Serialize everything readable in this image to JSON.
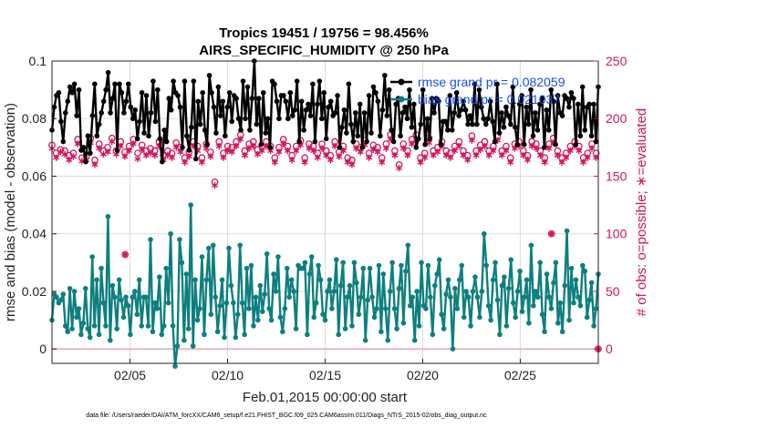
{
  "colors": {
    "rmse": "#000000",
    "bias": "#0e7f7f",
    "obs": "#d4145a",
    "legend_text": "#1a4ff0",
    "zero_line": "#e6b8c4"
  },
  "chart_data": {
    "type": "line",
    "title": "Tropics 19451 / 19756 = 98.456%",
    "subtitle": "AIRS_SPECIFIC_HUMIDITY @ 250 hPa",
    "xlabel": "Feb.01,2015 00:00:00 start",
    "ylabel": "rmse and bias (model - observation)",
    "y2label": "# of obs: o=possible; ∗=evaluated",
    "xlim": [
      1,
      29
    ],
    "ylim": [
      -0.005,
      0.1
    ],
    "y2lim": [
      -12.5,
      250
    ],
    "xticks": [
      5,
      10,
      15,
      20,
      25
    ],
    "xtick_labels": [
      "02/05",
      "02/10",
      "02/15",
      "02/20",
      "02/25"
    ],
    "yticks": [
      0,
      0.02,
      0.04,
      0.06,
      0.08,
      0.1
    ],
    "ytick_labels": [
      "0",
      "0.02",
      "0.04",
      "0.06",
      "0.08",
      "0.1"
    ],
    "y2ticks": [
      0,
      50,
      100,
      150,
      200,
      250
    ],
    "y2tick_labels": [
      "0",
      "50",
      "100",
      "150",
      "200",
      "250"
    ],
    "grid": true,
    "legend_position": "top-right",
    "footnote": "data file: /Users/raeder/DAI/ATM_forcXX/CAM6_setup/f.e21.FHIST_BGC.f09_025.CAM6assim.011/Diags_NTrS_2015-02/obs_diag_output.nc",
    "series": [
      {
        "name": "rmse grand pr = 0.082059",
        "axis": "left",
        "marker": "dot",
        "values": [
          0.076,
          0.084,
          0.088,
          0.089,
          0.079,
          0.072,
          0.082,
          0.086,
          0.091,
          0.089,
          0.092,
          0.081,
          0.09,
          0.069,
          0.07,
          0.065,
          0.074,
          0.068,
          0.081,
          0.092,
          0.074,
          0.078,
          0.082,
          0.086,
          0.09,
          0.096,
          0.082,
          0.087,
          0.092,
          0.069,
          0.092,
          0.089,
          0.082,
          0.086,
          0.092,
          0.084,
          0.08,
          0.083,
          0.073,
          0.079,
          0.089,
          0.075,
          0.088,
          0.074,
          0.082,
          0.093,
          0.079,
          0.09,
          0.073,
          0.065,
          0.076,
          0.072,
          0.087,
          0.083,
          0.093,
          0.089,
          0.088,
          0.084,
          0.07,
          0.093,
          0.074,
          0.069,
          0.077,
          0.093,
          0.066,
          0.086,
          0.078,
          0.089,
          0.076,
          0.071,
          0.095,
          0.089,
          0.084,
          0.075,
          0.091,
          0.081,
          0.086,
          0.074,
          0.084,
          0.089,
          0.079,
          0.088,
          0.087,
          0.08,
          0.076,
          0.093,
          0.08,
          0.091,
          0.076,
          0.087,
          0.1,
          0.078,
          0.087,
          0.071,
          0.089,
          0.075,
          0.08,
          0.07,
          0.093,
          0.092,
          0.086,
          0.08,
          0.088,
          0.088,
          0.086,
          0.08,
          0.089,
          0.081,
          0.083,
          0.093,
          0.072,
          0.086,
          0.076,
          0.083,
          0.085,
          0.081,
          0.092,
          0.072,
          0.085,
          0.093,
          0.08,
          0.089,
          0.073,
          0.084,
          0.086,
          0.081,
          0.082,
          0.088,
          0.07,
          0.077,
          0.083,
          0.075,
          0.092,
          0.078,
          0.072,
          0.082,
          0.074,
          0.085,
          0.07,
          0.082,
          0.072,
          0.088,
          0.075,
          0.091,
          0.089,
          0.086,
          0.074,
          0.083,
          0.095,
          0.081,
          0.09,
          0.076,
          0.072,
          0.085,
          0.087,
          0.074,
          0.082,
          0.084,
          0.08,
          0.09,
          0.077,
          0.085,
          0.07,
          0.073,
          0.078,
          0.09,
          0.071,
          0.08,
          0.073,
          0.087,
          0.082,
          0.087,
          0.086,
          0.071,
          0.079,
          0.079,
          0.076,
          0.088,
          0.076,
          0.082,
          0.089,
          0.081,
          0.083,
          0.086,
          0.083,
          0.078,
          0.081,
          0.078,
          0.092,
          0.078,
          0.09,
          0.084,
          0.08,
          0.078,
          0.08,
          0.086,
          0.079,
          0.072,
          0.092,
          0.075,
          0.082,
          0.077,
          0.084,
          0.081,
          0.078,
          0.091,
          0.077,
          0.071,
          0.085,
          0.088,
          0.071,
          0.084,
          0.078,
          0.09,
          0.074,
          0.082,
          0.076,
          0.085,
          0.087,
          0.07,
          0.083,
          0.076,
          0.09,
          0.086,
          0.071,
          0.088,
          0.082,
          0.081,
          0.088,
          0.087,
          0.084,
          0.089,
          0.087,
          0.071,
          0.085,
          0.074,
          0.091,
          0.076,
          0.084,
          0.085,
          0.074,
          0.085,
          0.072,
          0.091
        ]
      },
      {
        "name": "bias grand pr = 0.021037",
        "axis": "left",
        "marker": "dot",
        "values": [
          0.01,
          0.019,
          0.018,
          0.016,
          0.017,
          0.019,
          0.008,
          0.006,
          0.021,
          0.007,
          0.02,
          0.011,
          0.014,
          0.005,
          0.009,
          0.021,
          0.007,
          0.004,
          0.032,
          0.008,
          0.024,
          0.005,
          0.028,
          0.016,
          0.008,
          0.046,
          0.003,
          0.022,
          0.018,
          0.007,
          0.024,
          0.017,
          0.011,
          0.018,
          0.015,
          0.005,
          0.018,
          0.02,
          0.012,
          0.024,
          0.008,
          0.018,
          0.018,
          0.008,
          0.038,
          0.006,
          0.016,
          0.014,
          0.025,
          0.005,
          0.008,
          0.028,
          0.016,
          0.04,
          0.008,
          -0.006,
          0.001,
          0.038,
          0.03,
          0.003,
          0.026,
          0.007,
          0.05,
          0.001,
          0.024,
          0.01,
          0.014,
          0.032,
          0.005,
          0.024,
          0.035,
          0.012,
          0.036,
          0.018,
          0.006,
          0.015,
          0.024,
          0.004,
          0.016,
          0.035,
          0.022,
          0.016,
          0.004,
          0.012,
          0.036,
          0.016,
          0.005,
          0.028,
          0.014,
          0.029,
          0.008,
          0.018,
          0.01,
          0.022,
          0.013,
          0.019,
          0.033,
          0.014,
          0.01,
          0.026,
          0.02,
          0.032,
          0.011,
          0.006,
          0.014,
          0.028,
          0.018,
          0.024,
          0.02,
          0.007,
          0.029,
          0.028,
          0.028,
          0.03,
          0.005,
          0.026,
          0.032,
          0.011,
          0.016,
          0.029,
          0.024,
          0.012,
          0.01,
          0.02,
          0.024,
          0.014,
          0.02,
          0.031,
          0.005,
          0.022,
          0.03,
          0.007,
          0.018,
          0.022,
          0.008,
          0.03,
          0.023,
          0.012,
          0.018,
          0.028,
          0.003,
          0.017,
          0.028,
          0.018,
          0.011,
          0.014,
          0.029,
          0.006,
          0.026,
          0.014,
          0.003,
          0.02,
          0.03,
          0.014,
          0.007,
          0.021,
          0.029,
          0.009,
          0.027,
          0.036,
          0.015,
          0.018,
          0.003,
          0.02,
          0.008,
          0.03,
          0.015,
          0.014,
          0.029,
          0.018,
          0.005,
          0.022,
          0.026,
          0.031,
          0.012,
          0.007,
          0.019,
          0.024,
          0.018,
          0.0,
          0.021,
          0.014,
          0.024,
          0.029,
          0.011,
          0.02,
          0.018,
          0.008,
          0.02,
          0.025,
          0.018,
          0.011,
          0.02,
          0.04,
          0.029,
          0.015,
          0.01,
          0.024,
          0.03,
          0.017,
          0.005,
          0.022,
          0.025,
          0.008,
          0.021,
          0.031,
          0.016,
          0.011,
          0.02,
          0.027,
          0.013,
          0.018,
          0.024,
          0.009,
          0.036,
          0.015,
          0.02,
          0.018,
          0.03,
          0.012,
          0.006,
          0.026,
          0.018,
          0.014,
          0.023,
          0.03,
          0.009,
          0.016,
          0.006,
          0.022,
          0.041,
          0.01,
          0.028,
          0.016,
          0.024,
          0.018,
          0.015,
          0.029,
          0.027,
          0.011,
          0.017,
          0.023,
          0.008,
          0.014,
          0.026
        ]
      },
      {
        "name": "# of obs possible",
        "axis": "right",
        "marker": "circle",
        "values": [
          177,
          180,
          170,
          166,
          173,
          168,
          172,
          175,
          168,
          171,
          170,
          178,
          182,
          172,
          166,
          171,
          167,
          175,
          183,
          186,
          164,
          170,
          178,
          180,
          172,
          165,
          175,
          180,
          183,
          177,
          172,
          185,
          180,
          172,
          171,
          168,
          176,
          178,
          182,
          175,
          170,
          168,
          177,
          180,
          172,
          186,
          174,
          168,
          172,
          170,
          180,
          176,
          168,
          166,
          172,
          177,
          170,
          182,
          179,
          183,
          175,
          170,
          166,
          176,
          171,
          185,
          180,
          175,
          176,
          172,
          166,
          175,
          178,
          183,
          171,
          176,
          145,
          147,
          180,
          178,
          170,
          168,
          176,
          182,
          175,
          170,
          180,
          176,
          186,
          170,
          172,
          168,
          178,
          185,
          180,
          177,
          173,
          170,
          176,
          171,
          180,
          183,
          176,
          172,
          166,
          170,
          175,
          178,
          182,
          180,
          176,
          170,
          168,
          173,
          176,
          185,
          181,
          172,
          166,
          175,
          178,
          180,
          176,
          172,
          170,
          185,
          178,
          175,
          172,
          176,
          168,
          170,
          180,
          177,
          171,
          172,
          176,
          182,
          166,
          170,
          164,
          176,
          178,
          183,
          175,
          170,
          181,
          173,
          170,
          168,
          177,
          180,
          175,
          172,
          166,
          170,
          178,
          176,
          186,
          180,
          172,
          164,
          160,
          170,
          178,
          175,
          172,
          176,
          182,
          180,
          186,
          172,
          166,
          175,
          170,
          178,
          183,
          176,
          172,
          170,
          175,
          168,
          180,
          177,
          172,
          176,
          170,
          166,
          176,
          183,
          180,
          175,
          172,
          170,
          168,
          176,
          185,
          180,
          172,
          166,
          177,
          175,
          180,
          178,
          172,
          170,
          176,
          168,
          185,
          180,
          172,
          177,
          176,
          170,
          166,
          175,
          178,
          183,
          180,
          176,
          172,
          170,
          168,
          176,
          180,
          185,
          178,
          176,
          172,
          170,
          166,
          175,
          178,
          180,
          183,
          176,
          172,
          170,
          166,
          168,
          170,
          163,
          176,
          175,
          180,
          182,
          176,
          172,
          166,
          168,
          170,
          176,
          178,
          165,
          170,
          172
        ]
      },
      {
        "name": "# of obs evaluated",
        "axis": "right",
        "marker": "asterisk",
        "values": [
          174,
          176,
          166,
          160,
          171,
          165,
          169,
          172,
          164,
          169,
          167,
          175,
          178,
          169,
          163,
          168,
          164,
          172,
          179,
          182,
          160,
          166,
          174,
          176,
          169,
          160,
          171,
          176,
          180,
          173,
          169,
          181,
          176,
          168,
          167,
          164,
          172,
          174,
          178,
          171,
          165,
          164,
          173,
          176,
          168,
          182,
          170,
          164,
          168,
          166,
          176,
          172,
          164,
          162,
          168,
          173,
          166,
          178,
          175,
          179,
          171,
          166,
          162,
          172,
          167,
          181,
          176,
          171,
          172,
          168,
          162,
          171,
          174,
          179,
          167,
          172,
          142,
          143,
          176,
          174,
          166,
          164,
          172,
          178,
          171,
          166,
          176,
          172,
          182,
          166,
          168,
          164,
          174,
          181,
          176,
          173,
          169,
          166,
          172,
          167,
          176,
          179,
          172,
          168,
          162,
          166,
          171,
          174,
          178,
          176,
          172,
          166,
          164,
          169,
          172,
          181,
          177,
          168,
          162,
          171,
          174,
          176,
          172,
          168,
          166,
          181,
          174,
          171,
          168,
          172,
          164,
          166,
          176,
          173,
          167,
          168,
          172,
          178,
          162,
          166,
          160,
          172,
          174,
          179,
          171,
          166,
          177,
          169,
          166,
          164,
          173,
          176,
          171,
          168,
          162,
          166,
          174,
          172,
          182,
          176,
          168,
          160,
          157,
          166,
          174,
          171,
          168,
          172,
          178,
          176,
          182,
          168,
          162,
          171,
          166,
          174,
          179,
          172,
          168,
          166,
          171,
          164,
          176,
          173,
          168,
          172,
          166,
          162,
          172,
          179,
          176,
          171,
          168,
          166,
          164,
          172,
          181,
          176,
          168,
          162,
          173,
          171,
          176,
          174,
          168,
          166,
          172,
          164,
          181,
          176,
          168,
          173,
          172,
          166,
          162,
          171,
          174,
          179,
          176,
          172,
          168,
          166,
          164,
          172,
          176,
          181,
          174,
          172,
          168,
          166,
          162,
          171,
          174,
          176,
          179,
          172,
          168,
          166,
          162,
          164,
          166,
          159,
          172,
          171,
          176,
          178,
          172,
          168,
          162,
          164,
          166,
          172,
          174,
          160,
          166,
          168
        ]
      }
    ],
    "annotations": [
      {
        "label": "obs_possible_outlier",
        "x": 4.75,
        "y2": 82
      },
      {
        "label": "obs_possible_outlier",
        "x": 26.6,
        "y2": 100
      },
      {
        "label": "obs_zero",
        "x": 29,
        "y2": 0
      }
    ]
  }
}
